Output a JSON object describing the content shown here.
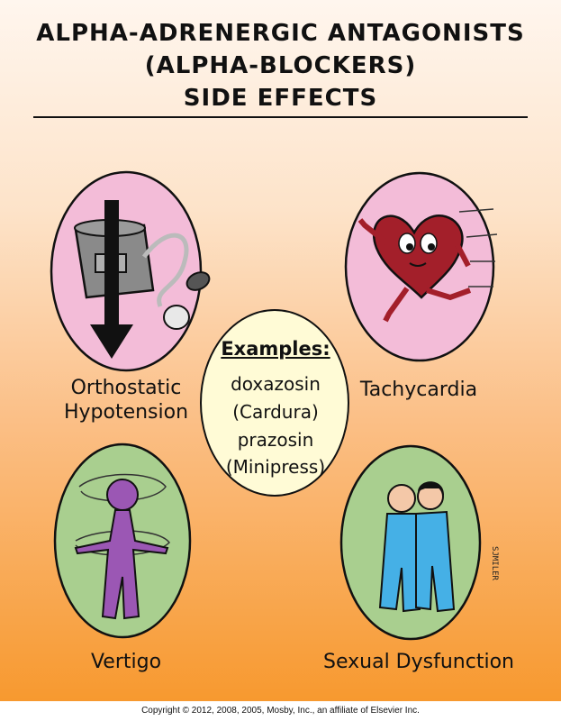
{
  "title": {
    "line1": "ALPHA-ADRENERGIC ANTAGONISTS",
    "line2": "(ALPHA-BLOCKERS)",
    "line3": "SIDE EFFECTS"
  },
  "panels": {
    "orthostatic": {
      "line1": "Orthostatic",
      "line2": "Hypotension"
    },
    "tachycardia": {
      "label": "Tachycardia"
    },
    "vertigo": {
      "label": "Vertigo"
    },
    "sexual": {
      "label": "Sexual Dysfunction"
    }
  },
  "examples": {
    "title": "Examples:",
    "items": [
      "doxazosin",
      "(Cardura)",
      "prazosin",
      "(Minipress)"
    ]
  },
  "artist_signature": "SJMILER",
  "copyright": "Copyright © 2012, 2008, 2005, Mosby, Inc., an affiliate of Elsevier Inc.",
  "colors": {
    "pink_oval": "#f3bcd8",
    "green_oval": "#a9cf8f",
    "cream_oval": "#fffbd6",
    "heart": "#a31f2a",
    "figure_purple": "#9b57b4",
    "figure_blue": "#45b0e6"
  }
}
